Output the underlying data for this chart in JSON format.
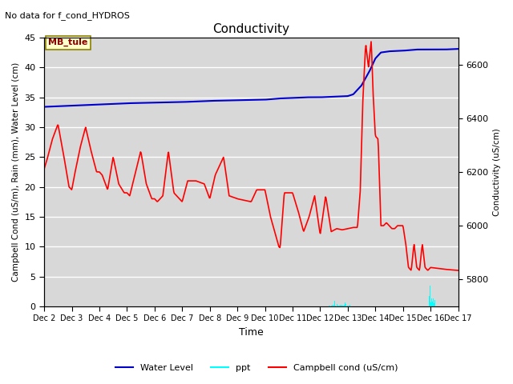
{
  "title": "Conductivity",
  "top_left_text": "No data for f_cond_HYDROS",
  "ylabel_left": "Campbell Cond (uS/m), Rain (mm), Water Level (cm)",
  "ylabel_right": "Conductivity (uS/cm)",
  "xlabel": "Time",
  "ylim_left": [
    0,
    45
  ],
  "ylim_right": [
    5700,
    6700
  ],
  "background_color": "#ffffff",
  "plot_bg_color": "#d8d8d8",
  "legend_entries": [
    "Water Level",
    "ppt",
    "Campbell cond (uS/cm)"
  ],
  "legend_colors": [
    "#0000cc",
    "cyan",
    "red"
  ],
  "annotation_box": {
    "text": "MB_tule",
    "color": "#8B0000",
    "bg": "#ffffcc",
    "edge": "#8B8000"
  },
  "x_tick_labels": [
    "Dec 2",
    "Dec 3",
    "Dec 4",
    "Dec 5",
    "Dec 6",
    "Dec 7",
    "Dec 8",
    "Dec 9",
    "Dec 10",
    "Dec 11",
    "Dec 12",
    "Dec 13",
    "Dec 14",
    "Dec 15",
    "Dec 16",
    "Dec 17"
  ],
  "x_tick_positions": [
    2,
    3,
    4,
    5,
    6,
    7,
    8,
    9,
    10,
    11,
    12,
    13,
    14,
    15,
    16,
    17
  ],
  "xlim": [
    2,
    17
  ]
}
